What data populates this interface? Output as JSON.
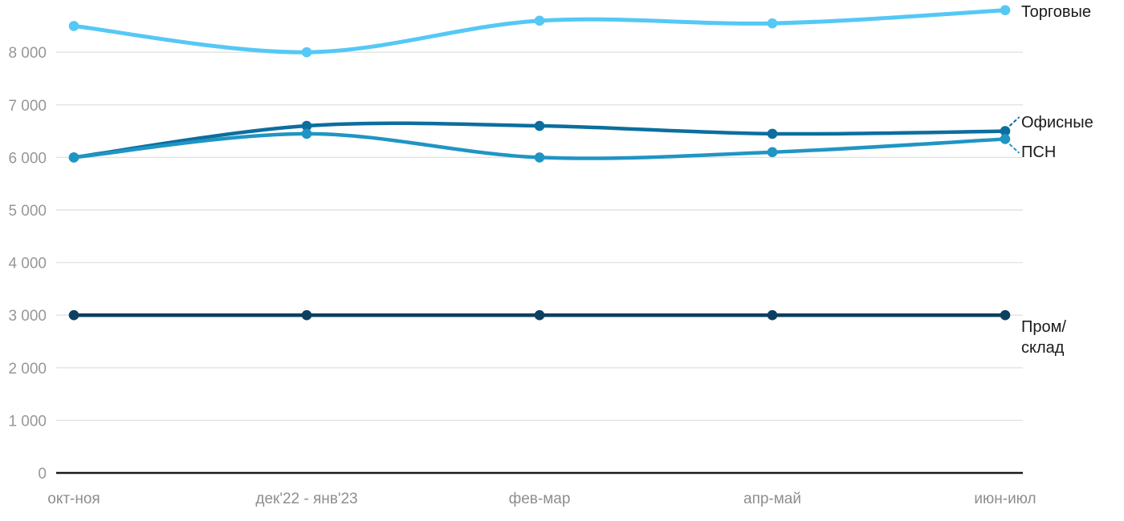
{
  "chart_data": {
    "type": "line",
    "title": "",
    "x_categories": [
      "окт-ноя",
      "дек'22 - янв'23",
      "фев-мар",
      "апр-май",
      "июн-июл"
    ],
    "y_axis": {
      "ticks": [
        {
          "label": "0",
          "value": 0
        },
        {
          "label": "1 000",
          "value": 1000
        },
        {
          "label": "2 000",
          "value": 2000
        },
        {
          "label": "3 000",
          "value": 3000
        },
        {
          "label": "4 000",
          "value": 4000
        },
        {
          "label": "5 000",
          "value": 5000
        },
        {
          "label": "6 000",
          "value": 6000
        },
        {
          "label": "7 000",
          "value": 7000
        },
        {
          "label": "8 000",
          "value": 8000
        }
      ],
      "range": [
        0,
        8800
      ]
    },
    "series": [
      {
        "name": "Торговые",
        "color": "#55C8F5",
        "values": [
          8500,
          8000,
          8600,
          8550,
          8800
        ],
        "leader_dash": false
      },
      {
        "name": "Офисные",
        "color": "#0C6E9E",
        "values": [
          6000,
          6600,
          6600,
          6450,
          6500
        ],
        "leader_dash": true
      },
      {
        "name": "ПСН",
        "color": "#2095C3",
        "values": [
          6000,
          6450,
          6000,
          6100,
          6350
        ],
        "leader_dash": true
      },
      {
        "name": "Пром/склад",
        "color": "#0D4060",
        "values": [
          3000,
          3000,
          3000,
          3000,
          3000
        ],
        "leader_dash": false
      }
    ],
    "grid": true,
    "legend_position": "right-end-labels",
    "colors": {
      "background": "#FFFFFF",
      "gridline": "#E2E2E2",
      "axis_line": "#1A1A1A",
      "tick_label": "#979797",
      "x_label": "#8E8E8E",
      "series_label": "#1A1A1A"
    }
  }
}
